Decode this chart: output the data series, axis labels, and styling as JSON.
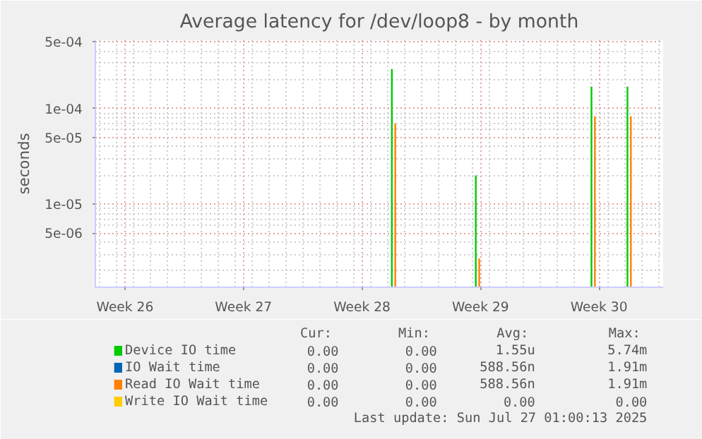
{
  "chart_data": {
    "type": "bar",
    "title": "Average latency for /dev/loop8 - by month",
    "ylabel": "seconds",
    "x": [
      "2025-07-12T10:00",
      "2025-07-17T09:00",
      "2025-07-24T05:00",
      "2025-07-26T08:00"
    ],
    "series": [
      {
        "name": "Device IO time",
        "color": "#00cc00",
        "values": [
          0.00026,
          2e-05,
          0.00017,
          0.00017
        ]
      },
      {
        "name": "IO Wait time",
        "color": "#0066b3",
        "values": [
          null,
          null,
          null,
          null
        ]
      },
      {
        "name": "Read IO Wait time",
        "color": "#ff8000",
        "values": [
          7e-05,
          2.7e-06,
          8.3e-05,
          8.3e-05
        ]
      },
      {
        "name": "Write IO Wait time",
        "color": "#ffcc00",
        "values": [
          null,
          null,
          null,
          null
        ]
      }
    ],
    "log": "y",
    "xlim": [
      "2025-06-24T18:00",
      "2025-07-28T07:00"
    ],
    "ylim": [
      1.35e-06,
      0.00052
    ],
    "xticks": [
      {
        "value": "2025-06-26T12:00",
        "label": "Week 26"
      },
      {
        "value": "2025-07-03T12:00",
        "label": "Week 27"
      },
      {
        "value": "2025-07-10T12:00",
        "label": "Week 28"
      },
      {
        "value": "2025-07-17T12:00",
        "label": "Week 29"
      },
      {
        "value": "2025-07-24T12:00",
        "label": "Week 30"
      }
    ],
    "yticks": [
      {
        "value": 5e-06,
        "label": "5e-06"
      },
      {
        "value": 1e-05,
        "label": "1e-05"
      },
      {
        "value": 5e-05,
        "label": "5e-05"
      },
      {
        "value": 0.0001,
        "label": "1e-04"
      },
      {
        "value": 0.0005,
        "label": "5e-04"
      }
    ],
    "grid": true,
    "legend": "bottom",
    "annotations": [
      "Cur:",
      "Min:",
      "Avg:",
      "Max:",
      "0.00",
      "0.00",
      "1.55u",
      "5.74m",
      "0.00",
      "0.00",
      "588.56n",
      "1.91m",
      "0.00",
      "0.00",
      "588.56n",
      "1.91m",
      "0.00",
      "0.00",
      "0.00",
      "0.00",
      "Last update: Sun Jul 27 01:00:13 2025"
    ]
  }
}
